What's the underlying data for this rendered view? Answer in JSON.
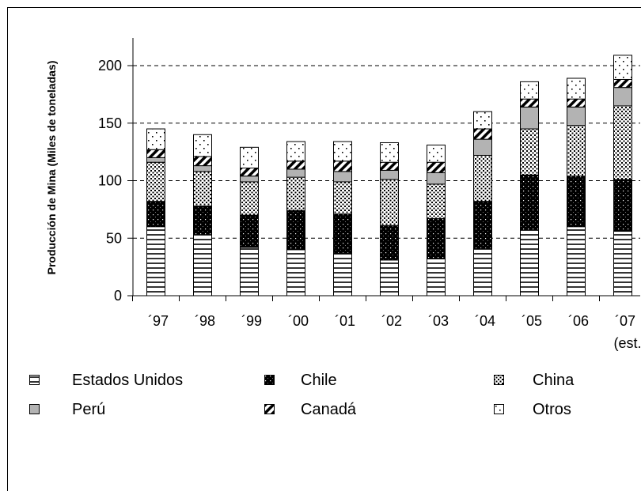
{
  "chart_data": {
    "type": "bar",
    "stacked": true,
    "title": "",
    "xlabel": "",
    "ylabel": "Producción de Mina (Miles de toneladas)",
    "ylim": [
      0,
      200
    ],
    "yticks": [
      "0",
      "50",
      "100",
      "150",
      "200"
    ],
    "grid": "horizontal dashed",
    "legend_placement": "bottom",
    "categories": [
      "´97",
      "´98",
      "´99",
      "´00",
      "´01",
      "´02",
      "´03",
      "´04",
      "´05",
      "´06",
      "´07"
    ],
    "category_sublabels": [
      "",
      "",
      "",
      "",
      "",
      "",
      "",
      "",
      "",
      "",
      "(est.)"
    ],
    "series": [
      {
        "name": "Estados Unidos",
        "pattern": "horizontal-lines",
        "values": [
          60,
          53,
          42,
          40,
          37,
          31,
          32,
          41,
          57,
          60,
          56
        ]
      },
      {
        "name": "Chile",
        "pattern": "black-dots",
        "values": [
          22,
          25,
          28,
          34,
          34,
          30,
          35,
          41,
          48,
          44,
          45
        ]
      },
      {
        "name": "China",
        "pattern": "dots",
        "values": [
          34,
          30,
          29,
          29,
          28,
          40,
          30,
          40,
          40,
          44,
          64
        ]
      },
      {
        "name": "Perú",
        "pattern": "gray",
        "values": [
          4,
          5,
          5,
          7,
          9,
          8,
          10,
          14,
          19,
          16,
          16
        ]
      },
      {
        "name": "Canadá",
        "pattern": "diagonal",
        "values": [
          7,
          8,
          7,
          7,
          9,
          7,
          9,
          9,
          7,
          7,
          7
        ]
      },
      {
        "name": "Otros",
        "pattern": "sparse-dots",
        "values": [
          18,
          19,
          18,
          17,
          17,
          17,
          15,
          15,
          15,
          18,
          21
        ]
      }
    ]
  },
  "legend": {
    "items": [
      "Estados Unidos",
      "Chile",
      "China",
      "Perú",
      "Canadá",
      "Otros"
    ]
  }
}
